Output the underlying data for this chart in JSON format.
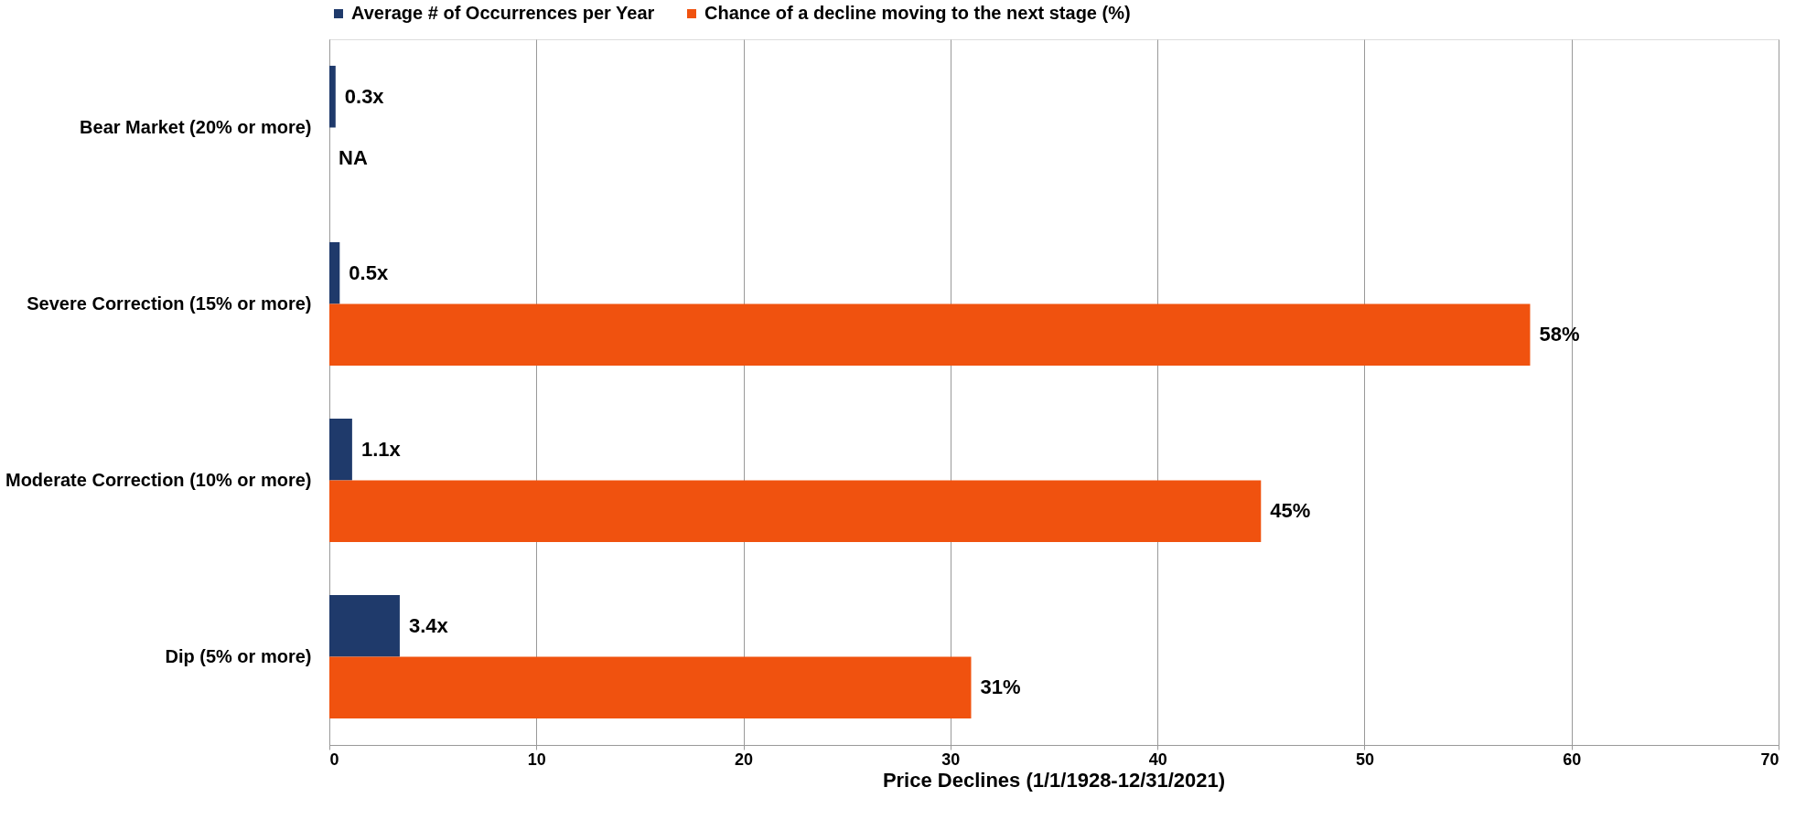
{
  "chart_data": {
    "type": "bar",
    "orientation": "horizontal",
    "title": "Price Declines (1/1/1928-12/31/2021)",
    "categories": [
      "Bear Market (20% or more)",
      "Severe Correction (15% or more)",
      "Moderate Correction (10% or more)",
      "Dip (5% or more)"
    ],
    "series": [
      {
        "name": "Average # of Occurrences per Year",
        "color": "#1f3a6b",
        "values": [
          0.3,
          0.5,
          1.1,
          3.4
        ],
        "value_labels": [
          "0.3x",
          "0.5x",
          "1.1x",
          "3.4x"
        ]
      },
      {
        "name": "Chance of a decline moving to the next stage (%)",
        "color": "#f0520f",
        "values": [
          null,
          58,
          45,
          31
        ],
        "value_labels": [
          "NA",
          "58%",
          "45%",
          "31%"
        ]
      }
    ],
    "xlim": [
      0,
      70
    ],
    "xticks": [
      0,
      10,
      20,
      30,
      40,
      50,
      60,
      70
    ],
    "grid": "x",
    "legend": "top"
  }
}
